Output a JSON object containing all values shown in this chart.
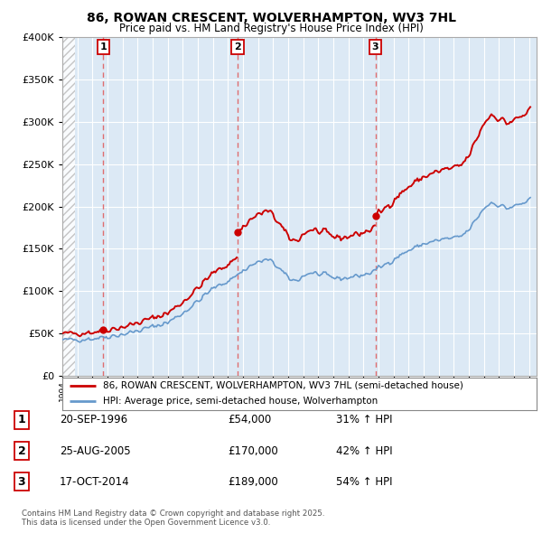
{
  "title": "86, ROWAN CRESCENT, WOLVERHAMPTON, WV3 7HL",
  "subtitle": "Price paid vs. HM Land Registry's House Price Index (HPI)",
  "hpi_label": "HPI: Average price, semi-detached house, Wolverhampton",
  "price_label": "86, ROWAN CRESCENT, WOLVERHAMPTON, WV3 7HL (semi-detached house)",
  "sales": [
    {
      "num": 1,
      "date": "20-SEP-1996",
      "price": 54000,
      "hpi_pct": "31% ↑ HPI",
      "year": 1996.72
    },
    {
      "num": 2,
      "date": "25-AUG-2005",
      "price": 170000,
      "hpi_pct": "42% ↑ HPI",
      "year": 2005.64
    },
    {
      "num": 3,
      "date": "17-OCT-2014",
      "price": 189000,
      "hpi_pct": "54% ↑ HPI",
      "year": 2014.79
    }
  ],
  "copyright": "Contains HM Land Registry data © Crown copyright and database right 2025.\nThis data is licensed under the Open Government Licence v3.0.",
  "ylim": [
    0,
    400000
  ],
  "xlim_start": 1994.0,
  "xlim_end": 2025.5,
  "price_color": "#cc0000",
  "hpi_color": "#6699cc",
  "background_color": "#dce9f5",
  "grid_color": "#ffffff",
  "dashed_line_color": "#e06060"
}
